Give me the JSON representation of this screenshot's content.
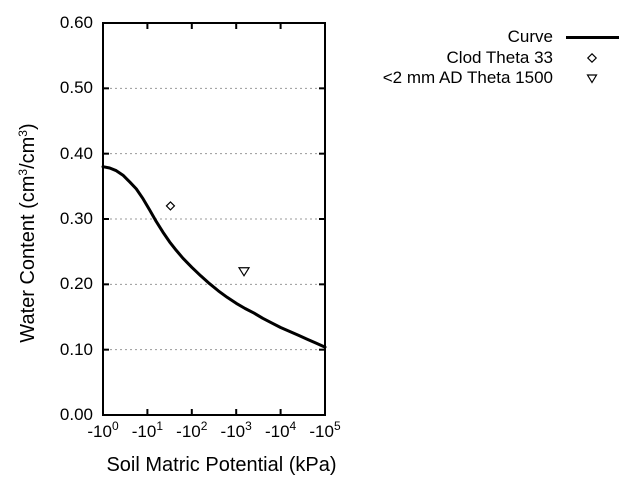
{
  "figure": {
    "background_color": "#ffffff",
    "axis_color": "#000000",
    "grid_color": "#999999",
    "curve_color": "#000000"
  },
  "y_axis": {
    "title_text": "Water Content (cm3/cm3)",
    "title_segments": [
      {
        "t": "Water Content (cm"
      },
      {
        "t": "3",
        "sup": true
      },
      {
        "t": "/cm"
      },
      {
        "t": "3",
        "sup": true
      },
      {
        "t": ")"
      }
    ],
    "ticks": [
      {
        "label": "0.00",
        "value": 0.0
      },
      {
        "label": "0.10",
        "value": 0.1
      },
      {
        "label": "0.20",
        "value": 0.2
      },
      {
        "label": "0.30",
        "value": 0.3
      },
      {
        "label": "0.40",
        "value": 0.4
      },
      {
        "label": "0.50",
        "value": 0.5
      },
      {
        "label": "0.60",
        "value": 0.6
      }
    ],
    "range": [
      0.0,
      0.6
    ],
    "gridline_values": [
      0.1,
      0.2,
      0.3,
      0.4,
      0.5
    ]
  },
  "x_axis": {
    "title_text": "Soil Matric Potential (kPa)",
    "scale": "negative log10",
    "ticks": [
      {
        "base": "-10",
        "exp": "0",
        "decade": 0
      },
      {
        "base": "-10",
        "exp": "1",
        "decade": 1
      },
      {
        "base": "-10",
        "exp": "2",
        "decade": 2
      },
      {
        "base": "-10",
        "exp": "3",
        "decade": 3
      },
      {
        "base": "-10",
        "exp": "4",
        "decade": 4
      },
      {
        "base": "-10",
        "exp": "5",
        "decade": 5
      }
    ],
    "range_decades": [
      0,
      5
    ]
  },
  "legend": {
    "position": "top-right",
    "items": [
      {
        "label": "Curve",
        "marker": "line"
      },
      {
        "label": "Clod Theta 33",
        "marker": "open-diamond"
      },
      {
        "label": "<2 mm AD Theta 1500",
        "marker": "open-triangle-down"
      }
    ]
  },
  "chart_data": {
    "type": "line",
    "title": "",
    "xlabel": "Soil Matric Potential (kPa)",
    "ylabel": "Water Content (cm3/cm3)",
    "x_scale": "log10 of |kPa|, negative axis",
    "xlim_decades": [
      0,
      5
    ],
    "ylim": [
      0.0,
      0.6
    ],
    "grid": "horizontal dotted",
    "legend_position": "outside top-right",
    "series": [
      {
        "name": "Curve",
        "type": "line",
        "color": "#000000",
        "points_decade_theta": [
          [
            0.0,
            0.38
          ],
          [
            0.15,
            0.378
          ],
          [
            0.3,
            0.374
          ],
          [
            0.45,
            0.367
          ],
          [
            0.6,
            0.357
          ],
          [
            0.75,
            0.346
          ],
          [
            0.9,
            0.331
          ],
          [
            1.05,
            0.314
          ],
          [
            1.2,
            0.296
          ],
          [
            1.35,
            0.28
          ],
          [
            1.5,
            0.265
          ],
          [
            1.65,
            0.252
          ],
          [
            1.8,
            0.24
          ],
          [
            2.0,
            0.226
          ],
          [
            2.2,
            0.213
          ],
          [
            2.4,
            0.201
          ],
          [
            2.6,
            0.19
          ],
          [
            2.8,
            0.18
          ],
          [
            3.0,
            0.171
          ],
          [
            3.2,
            0.163
          ],
          [
            3.4,
            0.156
          ],
          [
            3.6,
            0.148
          ],
          [
            3.8,
            0.141
          ],
          [
            4.0,
            0.134
          ],
          [
            4.2,
            0.128
          ],
          [
            4.4,
            0.122
          ],
          [
            4.6,
            0.116
          ],
          [
            4.8,
            0.11
          ],
          [
            5.0,
            0.104
          ]
        ]
      },
      {
        "name": "Clod Theta 33",
        "type": "scatter",
        "marker": "open-diamond",
        "color": "#000000",
        "points": [
          {
            "potential_kPa": -33,
            "decade": 1.519,
            "theta": 0.32
          }
        ]
      },
      {
        "name": "<2 mm AD Theta 1500",
        "type": "scatter",
        "marker": "open-triangle-down",
        "color": "#000000",
        "points": [
          {
            "potential_kPa": -1500,
            "decade": 3.176,
            "theta": 0.22
          }
        ]
      }
    ]
  }
}
